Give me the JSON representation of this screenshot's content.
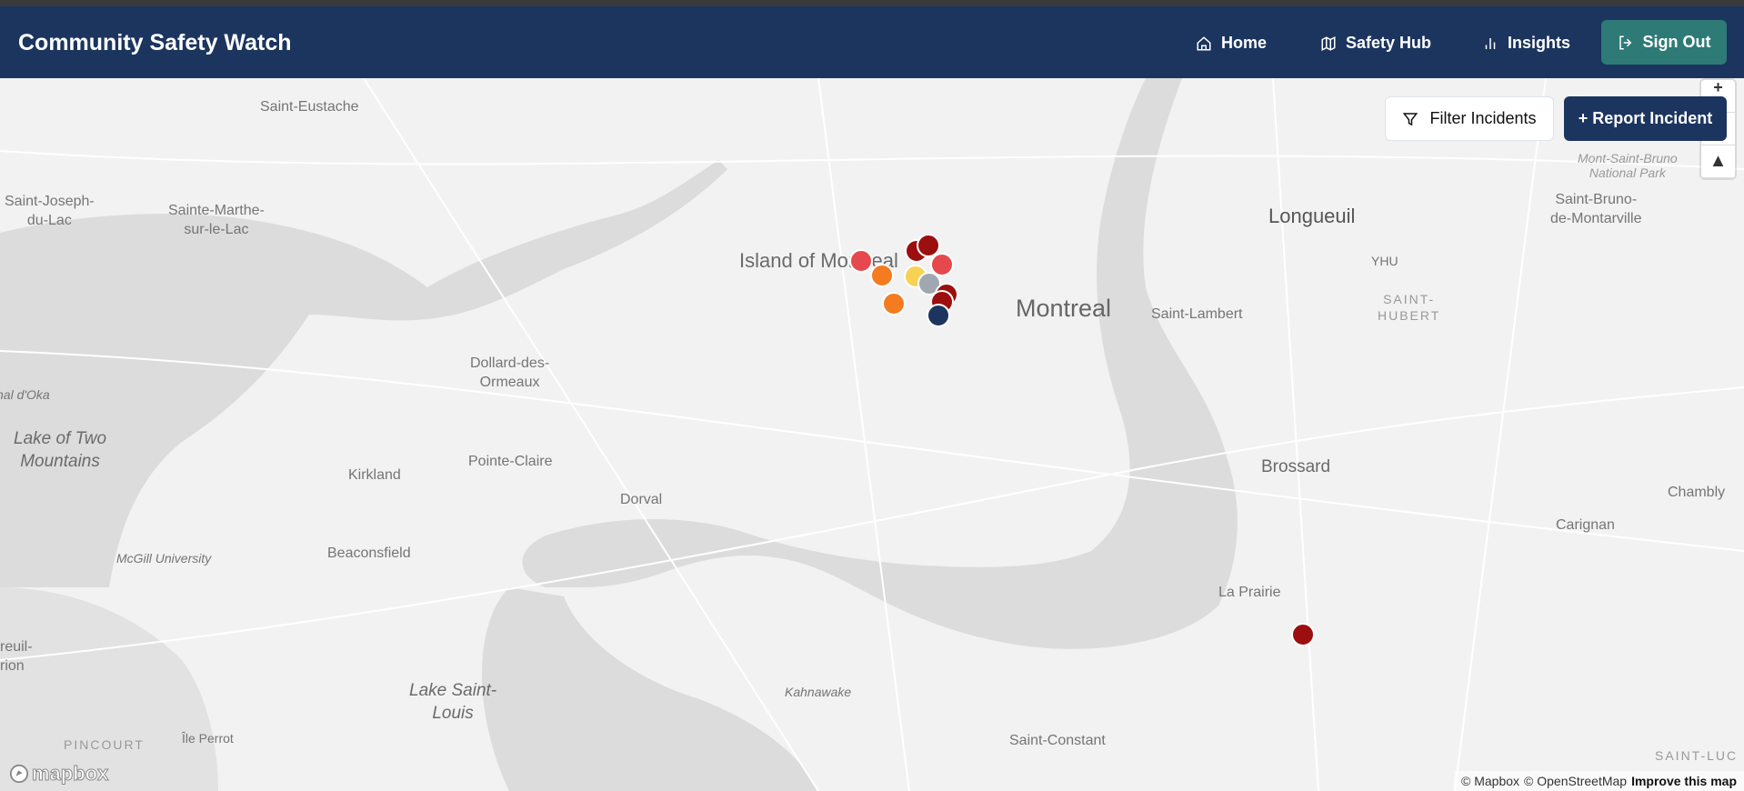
{
  "header": {
    "title": "Community Safety Watch",
    "nav": [
      {
        "label": "Home",
        "icon": "home-icon"
      },
      {
        "label": "Safety Hub",
        "icon": "map-icon"
      },
      {
        "label": "Insights",
        "icon": "bar-chart-icon"
      }
    ],
    "sign_out": {
      "label": "Sign Out",
      "icon": "sign-out-icon",
      "color": "#2e7a76"
    },
    "color": "#1c355e"
  },
  "map": {
    "controls": {
      "filter_label": "Filter Incidents",
      "report_label": "+ Report Incident",
      "zoom_in": "+",
      "compass": "▲"
    },
    "labels": {
      "saint_eustache": "Saint-Eustache",
      "saint_joseph": "Saint-Joseph-\ndu-Lac",
      "sainte_marthe": "Sainte-Marthe-\nsur-le-Lac",
      "island": "Island of Montreal",
      "montreal": "Montreal",
      "longueuil": "Longueuil",
      "yhu": "YHU",
      "saint_hubert": "SAINT-\nHUBERT",
      "saint_lambert": "Saint-Lambert",
      "mont_saint_bruno": "Mont-Saint-Bruno\nNational Park",
      "saint_bruno": "Saint-Bruno-\nde-Montarville",
      "dollard": "Dollard-des-\nOrmeaux",
      "lake_two_mountains": "Lake of Two\nMountains",
      "pointe_claire": "Pointe-Claire",
      "kirkland": "Kirkland",
      "dorval": "Dorval",
      "beaconsfield": "Beaconsfield",
      "mcgill": "McGill University",
      "brossard": "Brossard",
      "chambly": "Chambly",
      "carignan": "Carignan",
      "la_prairie": "La Prairie",
      "kahnawake": "Kahnawake",
      "lake_saint_louis": "Lake Saint-\nLouis",
      "saint_constant": "Saint-Constant",
      "ile_perrot": "Île Perrot",
      "pincourt": "PINCOURT",
      "oka": "nal d'Oka",
      "vaudreuil": "reuil-\nrion",
      "saint_luc": "SAINT-LUC"
    },
    "incidents": [
      {
        "color": "#e5484d"
      },
      {
        "color": "#f47b20"
      },
      {
        "color": "#f47b20"
      },
      {
        "color": "#9b0f0f"
      },
      {
        "color": "#9b0f0f"
      },
      {
        "color": "#e5484d"
      },
      {
        "color": "#f8d254"
      },
      {
        "color": "#a0a7b1"
      },
      {
        "color": "#9b0f0f"
      },
      {
        "color": "#9b0f0f"
      },
      {
        "color": "#1c355e"
      },
      {
        "color": "#9b0f0f"
      }
    ],
    "logo": "mapbox",
    "attribution": {
      "mapbox": "© Mapbox",
      "osm": "© OpenStreetMap",
      "improve": "Improve this map"
    }
  }
}
